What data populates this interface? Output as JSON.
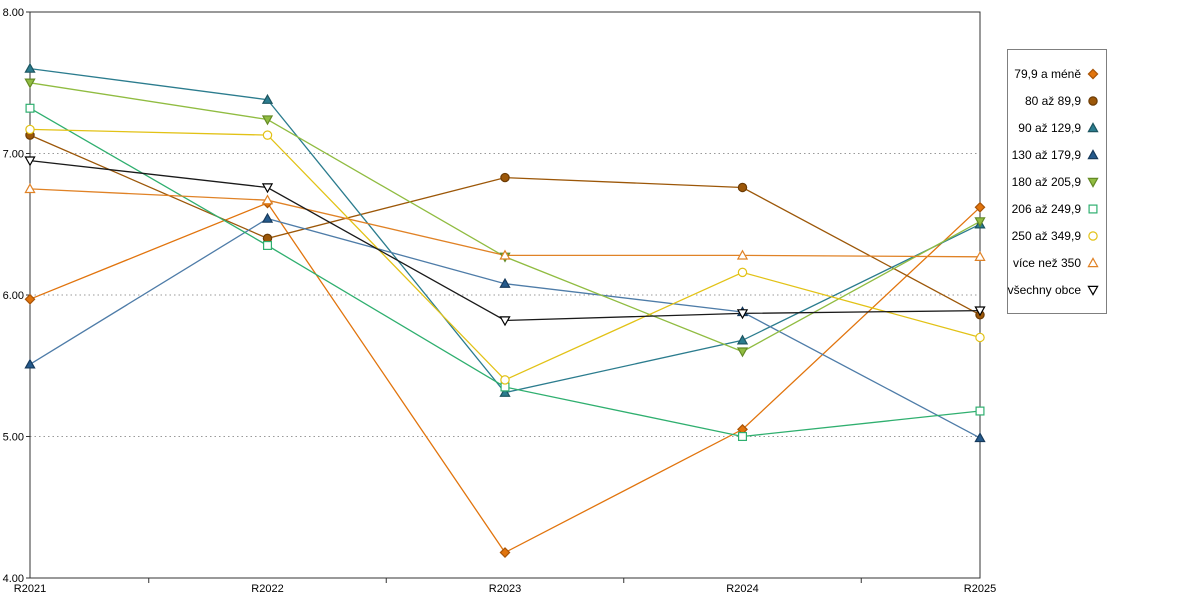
{
  "chart_data": {
    "type": "line",
    "title": "",
    "xlabel": "",
    "ylabel": "",
    "categories": [
      "R2021",
      "R2022",
      "R2023",
      "R2024",
      "R2025"
    ],
    "ylim": [
      4,
      8
    ],
    "y_tick_values": [
      8,
      7,
      6,
      5,
      4
    ],
    "y_tick_labels": [
      "8.00",
      "7.00",
      "6.00",
      "5.00",
      "4.00"
    ],
    "grid": "horizontal-dotted",
    "legend_position": "right",
    "series": [
      {
        "name": "79,9 a méně",
        "marker": "diamond",
        "open": false,
        "color": "#E1740D",
        "stroke": "#A85408",
        "line_color": "#E1740D",
        "values": [
          5.97,
          6.65,
          4.18,
          5.05,
          6.62
        ]
      },
      {
        "name": "80 až 89,9",
        "marker": "circle",
        "open": false,
        "color": "#9C5708",
        "stroke": "#6B3B05",
        "line_color": "#9C5708",
        "values": [
          7.13,
          6.4,
          6.83,
          6.76,
          5.86
        ]
      },
      {
        "name": "90 až 129,9",
        "marker": "triangle-up",
        "open": false,
        "color": "#2B7C8E",
        "stroke": "#1D5560",
        "line_color": "#2B7C8E",
        "values": [
          7.6,
          7.38,
          5.31,
          5.68,
          6.5
        ]
      },
      {
        "name": "130 až 179,9",
        "marker": "triangle-up",
        "open": false,
        "color": "#255A8C",
        "stroke": "#173A5C",
        "line_color": "#4E7CA8",
        "values": [
          5.51,
          6.54,
          6.08,
          5.88,
          4.99
        ]
      },
      {
        "name": "180 až 205,9",
        "marker": "triangle-down",
        "open": false,
        "color": "#90BC41",
        "stroke": "#648A25",
        "line_color": "#90BC41",
        "values": [
          7.5,
          7.24,
          6.27,
          5.6,
          6.52
        ]
      },
      {
        "name": "206 až 249,9",
        "marker": "square",
        "open": true,
        "color": "#2FAF6F",
        "stroke": "#2FAF6F",
        "line_color": "#2FAF6F",
        "values": [
          7.32,
          6.35,
          5.35,
          5.0,
          5.18
        ]
      },
      {
        "name": "250 až 349,9",
        "marker": "circle",
        "open": true,
        "color": "#E2C216",
        "stroke": "#C7A90E",
        "line_color": "#E2C216",
        "values": [
          7.17,
          7.13,
          5.4,
          6.16,
          5.7
        ]
      },
      {
        "name": "více než 350",
        "marker": "triangle-up",
        "open": true,
        "color": "#E08226",
        "stroke": "#E08226",
        "line_color": "#E08226",
        "values": [
          6.75,
          6.67,
          6.28,
          6.28,
          6.27
        ]
      },
      {
        "name": "všechny obce",
        "marker": "triangle-down",
        "open": true,
        "color": "#000000",
        "stroke": "#000000",
        "line_color": "#1A1A1A",
        "values": [
          6.95,
          6.76,
          5.82,
          5.87,
          5.89
        ]
      }
    ]
  }
}
